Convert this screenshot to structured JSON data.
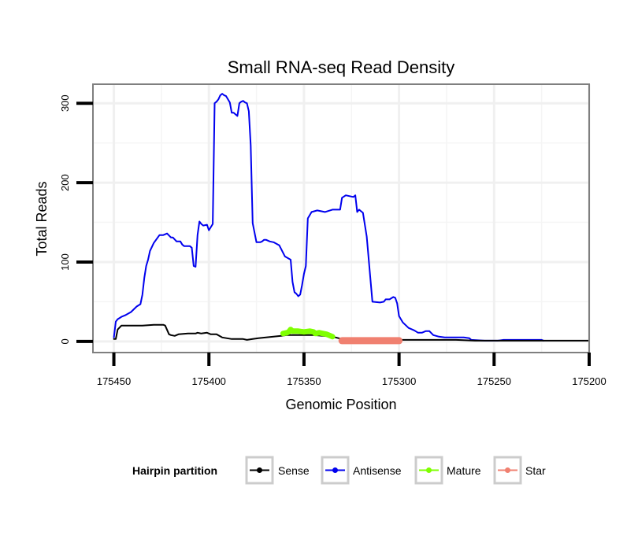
{
  "chart_data": {
    "type": "line",
    "title": "Small RNA-seq Read Density",
    "xlabel": "Genomic Position",
    "ylabel": "Total Reads",
    "xlim": [
      175200,
      175461
    ],
    "x_reversed": true,
    "ylim": [
      -14,
      324
    ],
    "x_ticks": [
      175450,
      175400,
      175350,
      175300,
      175250,
      175200
    ],
    "y_ticks": [
      0,
      100,
      200,
      300
    ],
    "grid": true,
    "legend": {
      "title": "Hairpin partition",
      "placement": "bottom",
      "entries": [
        {
          "name": "Sense",
          "color": "#000000"
        },
        {
          "name": "Antisense",
          "color": "#0000ee"
        },
        {
          "name": "Mature",
          "color": "#7fff00"
        },
        {
          "name": "Star",
          "color": "#f08070"
        }
      ]
    },
    "series": [
      {
        "name": "Antisense",
        "color": "#0000ee",
        "x": [
          175450,
          175449,
          175448,
          175446,
          175444,
          175441,
          175438,
          175436,
          175435,
          175434,
          175433,
          175432,
          175431,
          175429,
          175426,
          175424,
          175423,
          175422,
          175420,
          175419,
          175417,
          175415,
          175414,
          175413,
          175412,
          175410,
          175409,
          175408,
          175407,
          175406,
          175405,
          175404,
          175403,
          175401,
          175400,
          175398,
          175397,
          175396,
          175395,
          175394,
          175393,
          175392,
          175391,
          175389,
          175388,
          175387,
          175385,
          175384,
          175383,
          175382,
          175381,
          175380,
          175379,
          175378,
          175377,
          175375,
          175374,
          175373,
          175372,
          175371,
          175370,
          175368,
          175366,
          175363,
          175360,
          175357,
          175356,
          175355,
          175354,
          175353,
          175352,
          175351,
          175350,
          175349,
          175348,
          175346,
          175343,
          175339,
          175335,
          175333,
          175331,
          175330,
          175328,
          175324,
          175323,
          175322,
          175321,
          175320,
          175319,
          175317,
          175314,
          175310,
          175308,
          175307,
          175306,
          175305,
          175303,
          175302,
          175301,
          175300,
          175298,
          175295,
          175292,
          175290,
          175288,
          175286,
          175284,
          175282,
          175279,
          175276,
          175273,
          175266,
          175263,
          175262,
          175255,
          175248,
          175245,
          175244,
          175235,
          175225,
          175224
        ],
        "values": [
          5,
          25,
          28,
          31,
          33,
          37,
          44,
          47,
          59,
          80,
          95,
          103,
          114,
          124,
          134,
          134,
          135,
          136,
          131,
          131,
          126,
          126,
          122,
          120,
          120,
          120,
          118,
          95,
          94,
          134,
          151,
          148,
          146,
          147,
          140,
          148,
          300,
          302,
          305,
          310,
          312,
          310,
          309,
          301,
          288,
          288,
          284,
          300,
          302,
          303,
          301,
          300,
          290,
          247,
          149,
          125,
          125,
          125,
          126,
          128,
          128,
          126,
          125,
          121,
          107,
          103,
          75,
          62,
          60,
          57,
          59,
          71,
          85,
          95,
          155,
          163,
          165,
          163,
          166,
          166,
          166,
          181,
          184,
          182,
          184,
          163,
          166,
          164,
          162,
          132,
          50,
          49,
          50,
          53,
          53,
          53,
          56,
          55,
          48,
          32,
          24,
          17,
          14,
          11,
          11,
          13,
          13,
          8,
          6,
          5,
          5,
          5,
          4,
          2,
          1,
          1,
          2,
          2,
          2,
          2,
          1
        ]
      },
      {
        "name": "Sense",
        "color": "#000000",
        "x": [
          175450,
          175449,
          175448,
          175446,
          175441,
          175435,
          175429,
          175424,
          175423,
          175421,
          175420,
          175418,
          175416,
          175411,
          175407,
          175406,
          175404,
          175401,
          175399,
          175396,
          175393,
          175388,
          175385,
          175382,
          175380,
          175377,
          175374,
          175370,
          175366,
          175362,
          175359,
          175355,
          175350,
          175345,
          175340,
          175335,
          175330,
          175325,
          175320,
          175310,
          175300,
          175290,
          175280,
          175270,
          175260,
          175250,
          175240,
          175230,
          175220,
          175210,
          175200
        ],
        "values": [
          3,
          3,
          15,
          20,
          20,
          20,
          21,
          21,
          20,
          9,
          8,
          7,
          9,
          10,
          10,
          11,
          10,
          11,
          9,
          9,
          5,
          3,
          3,
          3,
          2,
          3,
          4,
          5,
          6,
          7,
          8,
          8,
          8,
          8,
          7,
          6,
          3,
          3,
          2,
          2,
          2,
          2,
          2,
          2,
          1,
          1,
          1,
          1,
          1,
          1,
          1
        ]
      },
      {
        "name": "Mature",
        "color": "#7fff00",
        "x": [
          175361,
          175359,
          175358,
          175357,
          175356,
          175355,
          175353,
          175350,
          175347,
          175345,
          175344,
          175342,
          175340,
          175338,
          175336,
          175335
        ],
        "values": [
          10,
          11,
          12,
          15,
          13,
          13,
          13,
          12,
          13,
          12,
          10,
          11,
          10,
          9,
          7,
          6
        ]
      },
      {
        "name": "Star",
        "color": "#f08070",
        "x": [
          175330,
          175300
        ],
        "values": [
          1,
          1
        ]
      }
    ]
  }
}
